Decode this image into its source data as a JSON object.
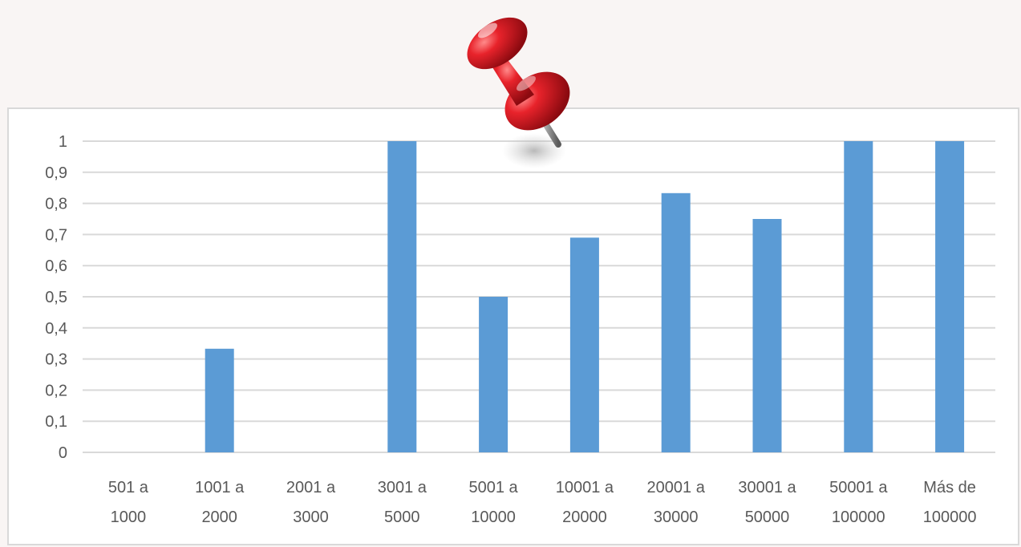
{
  "chart_data": {
    "type": "bar",
    "categories": [
      [
        "501 a",
        "1000"
      ],
      [
        "1001 a",
        "2000"
      ],
      [
        "2001 a",
        "3000"
      ],
      [
        "3001 a",
        "5000"
      ],
      [
        "5001 a",
        "10000"
      ],
      [
        "10001 a",
        "20000"
      ],
      [
        "20001 a",
        "30000"
      ],
      [
        "30001 a",
        "50000"
      ],
      [
        "50001 a",
        "100000"
      ],
      [
        "Más de",
        "100000"
      ]
    ],
    "values": [
      0,
      0.333,
      0,
      1,
      0.5,
      0.69,
      0.833,
      0.75,
      1,
      1
    ],
    "ylim": [
      0,
      1
    ],
    "yticks": [
      "0",
      "0,1",
      "0,2",
      "0,3",
      "0,4",
      "0,5",
      "0,6",
      "0,7",
      "0,8",
      "0,9",
      "1"
    ],
    "grid": true,
    "legend": "none",
    "bar_color": "#5b9bd5",
    "grid_color": "#d9d9d9",
    "label_color": "#595959"
  },
  "decoration": {
    "pin_icon": "red-pushpin-icon",
    "pin_color": "#d9222a"
  }
}
